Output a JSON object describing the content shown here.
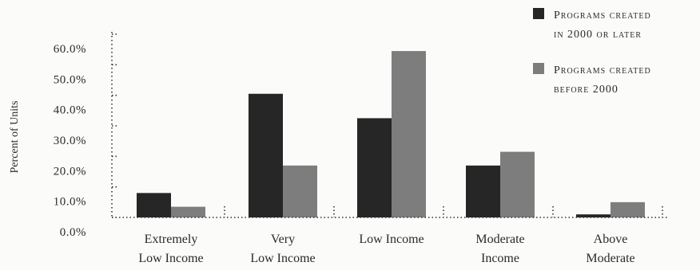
{
  "chart_data": {
    "type": "bar",
    "title": "",
    "xlabel": "",
    "ylabel": "Percent of Units",
    "ylim": [
      0,
      60
    ],
    "y_ticks": [
      "0.0%",
      "10.0%",
      "20.0%",
      "30.0%",
      "40.0%",
      "50.0%",
      "60.0%"
    ],
    "categories": [
      [
        "Extremely",
        "Low Income"
      ],
      [
        "Very",
        "Low Income"
      ],
      [
        "Low Income"
      ],
      [
        "Moderate",
        "Income"
      ],
      [
        "Above",
        "Moderate"
      ]
    ],
    "series": [
      {
        "name": [
          "Programs created",
          "in 2000 or later"
        ],
        "color": "#262626",
        "values": [
          8.0,
          40.5,
          32.5,
          17.0,
          1.0
        ]
      },
      {
        "name": [
          "Programs created",
          "before 2000"
        ],
        "color": "#7d7d7d",
        "values": [
          3.5,
          17.0,
          54.5,
          21.5,
          5.0
        ]
      }
    ],
    "grid": false,
    "legend": "top-right"
  }
}
